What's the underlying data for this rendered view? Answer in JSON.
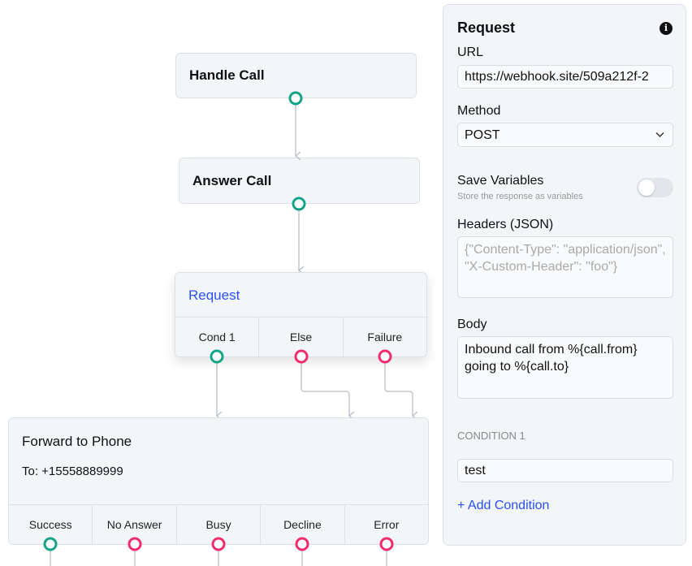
{
  "canvas": {
    "nodes": {
      "handle_call": {
        "title": "Handle Call"
      },
      "answer_call": {
        "title": "Answer Call"
      },
      "request": {
        "title": "Request",
        "outputs": [
          "Cond 1",
          "Else",
          "Failure"
        ]
      },
      "forward": {
        "title": "Forward to Phone",
        "to": "To: +15558889999",
        "outputs": [
          "Success",
          "No Answer",
          "Busy",
          "Decline",
          "Error"
        ]
      }
    }
  },
  "panel": {
    "title": "Request",
    "info_icon": "info-icon",
    "url_label": "URL",
    "url_value": "https://webhook.site/509a212f-2",
    "method_label": "Method",
    "method_value": "POST",
    "save_label": "Save Variables",
    "save_hint": "Store the response as variables",
    "save_enabled": false,
    "headers_label": "Headers (JSON)",
    "headers_placeholder": "{\"Content-Type\": \"application/json\", \"X-Custom-Header\": \"foo\"}",
    "body_label": "Body",
    "body_value": "Inbound call from %{call.from} going to %{call.to}",
    "condition_label": "CONDITION 1",
    "condition_value": "test",
    "add_condition": "+ Add Condition"
  },
  "colors": {
    "success_handle": "#13a386",
    "failure_handle": "#ef2d6c",
    "accent": "#2b4ef5"
  }
}
